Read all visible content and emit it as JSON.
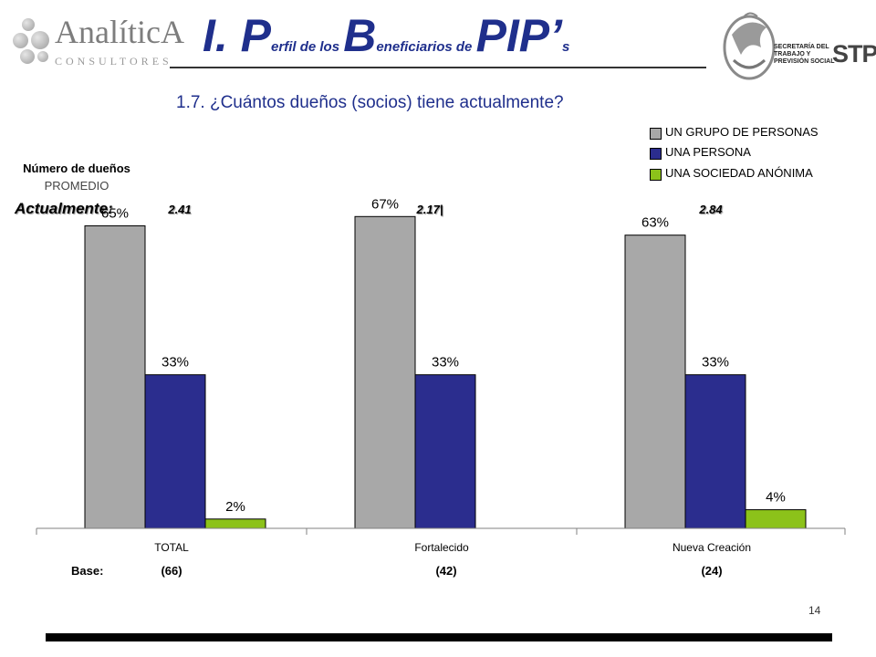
{
  "brand": {
    "left_name": "AnalíticA",
    "left_tagline": "CONSULTORES",
    "right_org_lines": [
      "SECRETARÍA DEL",
      "TRABAJO Y",
      "PREVISIÓN SOCIAL"
    ],
    "right_acronym": "STPS"
  },
  "title": {
    "big1": "I. P",
    "sm1": "erfil de los ",
    "big2": "B",
    "sm2": "eneficiarios de ",
    "big3": "PIP’",
    "sm3": "s"
  },
  "question": "1.7. ¿Cuántos dueños (socios) tiene actualmente?",
  "stats": {
    "title": "Número de dueños",
    "subtitle": "PROMEDIO",
    "label": "Actualmente:",
    "values": [
      "2.41",
      "2.17|",
      "2.84"
    ]
  },
  "base": {
    "label": "Base:",
    "values": [
      "(66)",
      "(42)",
      "(24)"
    ]
  },
  "page_number": "14",
  "chart_data": {
    "type": "bar",
    "categories": [
      "TOTAL",
      "Fortalecido",
      "Nueva Creación"
    ],
    "series": [
      {
        "name": "UN GRUPO DE PERSONAS",
        "values": [
          65,
          67,
          63
        ],
        "color": "#a8a8a8"
      },
      {
        "name": "UNA PERSONA",
        "values": [
          33,
          33,
          33
        ],
        "color": "#2b2d8e"
      },
      {
        "name": "UNA SOCIEDAD ANÓNIMA",
        "values": [
          2,
          0,
          4
        ],
        "color": "#8cc21a"
      }
    ],
    "data_labels": [
      [
        "65%",
        "33%",
        "2%"
      ],
      [
        "67%",
        "33%",
        ""
      ],
      [
        "63%",
        "33%",
        "4%"
      ]
    ],
    "ylim": [
      0,
      80
    ],
    "grid": false,
    "legend_position": "top-right",
    "xlabel": "",
    "ylabel": ""
  }
}
